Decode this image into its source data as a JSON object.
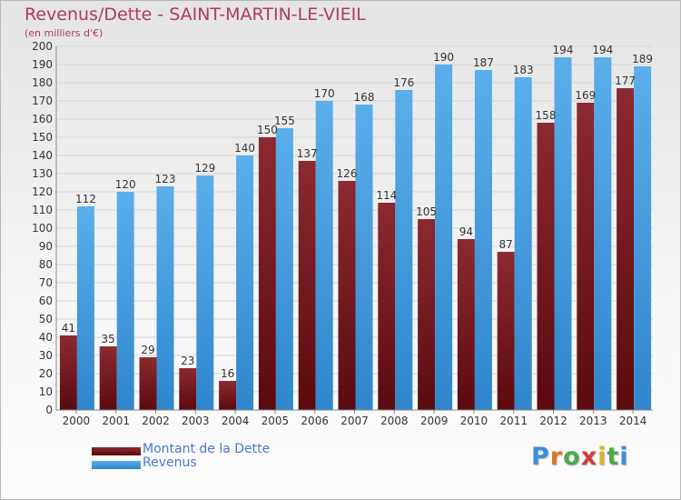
{
  "header": {
    "title": "Revenus/Dette - SAINT-MARTIN-LE-VIEIL",
    "subtitle": "(en milliers d'€)"
  },
  "colors": {
    "dette": "#7a1e24",
    "revenus": "#4ba2e2",
    "title": "#b03a5c"
  },
  "chart_data": {
    "type": "bar",
    "categories": [
      "2000",
      "2001",
      "2002",
      "2003",
      "2004",
      "2005",
      "2006",
      "2007",
      "2008",
      "2009",
      "2010",
      "2011",
      "2012",
      "2013",
      "2014"
    ],
    "series": [
      {
        "name": "Montant de la Dette",
        "values": [
          41,
          35,
          29,
          23,
          16,
          150,
          137,
          126,
          114,
          105,
          94,
          87,
          158,
          169,
          177
        ]
      },
      {
        "name": "Revenus",
        "values": [
          112,
          120,
          123,
          129,
          140,
          155,
          170,
          168,
          176,
          190,
          187,
          183,
          194,
          194,
          189
        ]
      }
    ],
    "ylim": [
      0,
      200
    ],
    "ytick_step": 10,
    "grid": true,
    "legend_position": "bottom-left"
  },
  "legend": {
    "items": [
      {
        "label": "Montant de la Dette"
      },
      {
        "label": "Revenus"
      }
    ]
  },
  "logo": {
    "text": "Proxiti"
  }
}
